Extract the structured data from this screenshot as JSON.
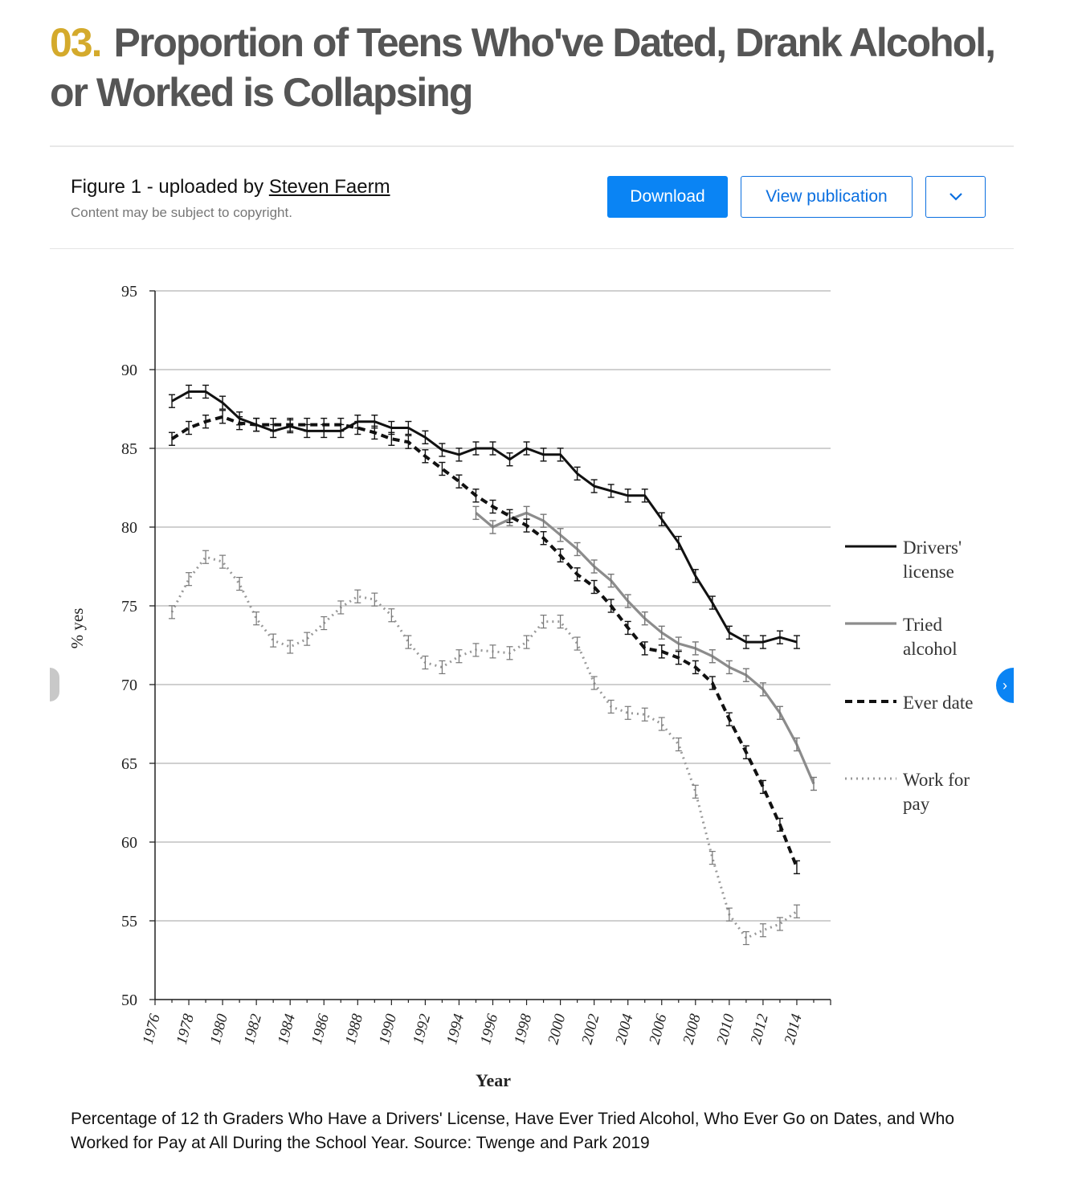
{
  "header": {
    "number": "03.",
    "title": "Proportion of Teens Who've Dated, Drank Alcohol, or Worked is Collapsing"
  },
  "figure": {
    "label_prefix": "Figure 1 - uploaded by ",
    "uploader": "Steven Faerm",
    "copyright_note": "Content may be subject to copyright.",
    "buttons": {
      "download": "Download",
      "view": "View publication",
      "more": "⌄"
    },
    "nav_next": "›",
    "caption": "Percentage of 12 th Graders Who Have a Drivers' License, Have Ever Tried Alcohol, Who Ever Go on Dates, and Who Worked for Pay at All During the School Year. Source: Twenge and Park 2019"
  },
  "colors": {
    "accent": "#d4aa2c",
    "primary": "#0a84f4",
    "title": "#555555"
  },
  "chart_data": {
    "type": "line",
    "xlabel": "Year",
    "ylabel": "% yes",
    "xlim": [
      1976,
      2016
    ],
    "ylim": [
      50,
      95
    ],
    "x_ticks": [
      1976,
      1978,
      1980,
      1982,
      1984,
      1986,
      1988,
      1990,
      1992,
      1994,
      1996,
      1998,
      2000,
      2002,
      2004,
      2006,
      2008,
      2010,
      2012,
      2014
    ],
    "y_ticks": [
      50,
      55,
      60,
      65,
      70,
      75,
      80,
      85,
      90,
      95
    ],
    "grid": true,
    "error_bars": true,
    "legend_position": "right",
    "series": [
      {
        "name": "Drivers' license",
        "legend_lines": [
          "Drivers'",
          "license"
        ],
        "style": "solid-black",
        "x": [
          1977,
          1978,
          1979,
          1980,
          1981,
          1982,
          1983,
          1984,
          1985,
          1986,
          1987,
          1988,
          1989,
          1990,
          1991,
          1992,
          1993,
          1994,
          1995,
          1996,
          1997,
          1998,
          1999,
          2000,
          2001,
          2002,
          2003,
          2004,
          2005,
          2006,
          2007,
          2008,
          2009,
          2010,
          2011,
          2012,
          2013,
          2014
        ],
        "values": [
          88,
          88.6,
          88.6,
          87.9,
          86.9,
          86.5,
          86.1,
          86.4,
          86.1,
          86.1,
          86.1,
          86.7,
          86.7,
          86.3,
          86.3,
          85.7,
          84.9,
          84.6,
          85,
          85,
          84.3,
          85,
          84.6,
          84.6,
          83.4,
          82.6,
          82.3,
          82,
          82,
          80.5,
          79,
          76.9,
          75.2,
          73.3,
          72.7,
          72.7,
          73,
          72.7
        ]
      },
      {
        "name": "Tried alcohol",
        "legend_lines": [
          "Tried",
          "alcohol"
        ],
        "style": "solid-gray",
        "x": [
          1995,
          1996,
          1997,
          1998,
          1999,
          2000,
          2001,
          2002,
          2003,
          2004,
          2005,
          2006,
          2007,
          2008,
          2009,
          2010,
          2011,
          2012,
          2013,
          2014,
          2015
        ],
        "values": [
          80.9,
          80,
          80.5,
          80.9,
          80.4,
          79.5,
          78.6,
          77.5,
          76.6,
          75.3,
          74.2,
          73.3,
          72.6,
          72.3,
          71.8,
          71.1,
          70.6,
          69.7,
          68.2,
          66.2,
          63.7
        ]
      },
      {
        "name": "Ever date",
        "legend_lines": [
          "Ever date"
        ],
        "style": "dashed-black",
        "x": [
          1977,
          1978,
          1979,
          1980,
          1981,
          1982,
          1983,
          1984,
          1985,
          1986,
          1987,
          1988,
          1989,
          1990,
          1991,
          1992,
          1993,
          1994,
          1995,
          1996,
          1997,
          1998,
          1999,
          2000,
          2001,
          2002,
          2003,
          2004,
          2005,
          2006,
          2007,
          2008,
          2009,
          2010,
          2011,
          2012,
          2013,
          2014
        ],
        "values": [
          85.6,
          86.3,
          86.7,
          87,
          86.6,
          86.5,
          86.5,
          86.5,
          86.5,
          86.5,
          86.5,
          86.3,
          86,
          85.6,
          85.4,
          84.5,
          83.7,
          82.9,
          82,
          81.3,
          80.7,
          80.1,
          79.3,
          78.2,
          77,
          76.2,
          75,
          73.6,
          72.3,
          72.1,
          71.7,
          71.1,
          70.1,
          67.8,
          65.7,
          63.5,
          61.1,
          58.4
        ]
      },
      {
        "name": "Work for pay",
        "legend_lines": [
          "Work for",
          "pay"
        ],
        "style": "dotted-gray",
        "x": [
          1977,
          1978,
          1979,
          1980,
          1981,
          1982,
          1983,
          1984,
          1985,
          1986,
          1987,
          1988,
          1989,
          1990,
          1991,
          1992,
          1993,
          1994,
          1995,
          1996,
          1997,
          1998,
          1999,
          2000,
          2001,
          2002,
          2003,
          2004,
          2005,
          2006,
          2007,
          2008,
          2009,
          2010,
          2011,
          2012,
          2013,
          2014
        ],
        "values": [
          74.6,
          76.7,
          78.1,
          77.8,
          76.4,
          74.2,
          72.8,
          72.4,
          72.9,
          73.9,
          74.9,
          75.6,
          75.4,
          74.4,
          72.7,
          71.4,
          71.1,
          71.8,
          72.2,
          72.1,
          72,
          72.7,
          74,
          74,
          72.6,
          70.1,
          68.6,
          68.2,
          68.1,
          67.5,
          66.2,
          63.2,
          59,
          55.4,
          53.9,
          54.4,
          54.8,
          55.6
        ]
      }
    ]
  }
}
